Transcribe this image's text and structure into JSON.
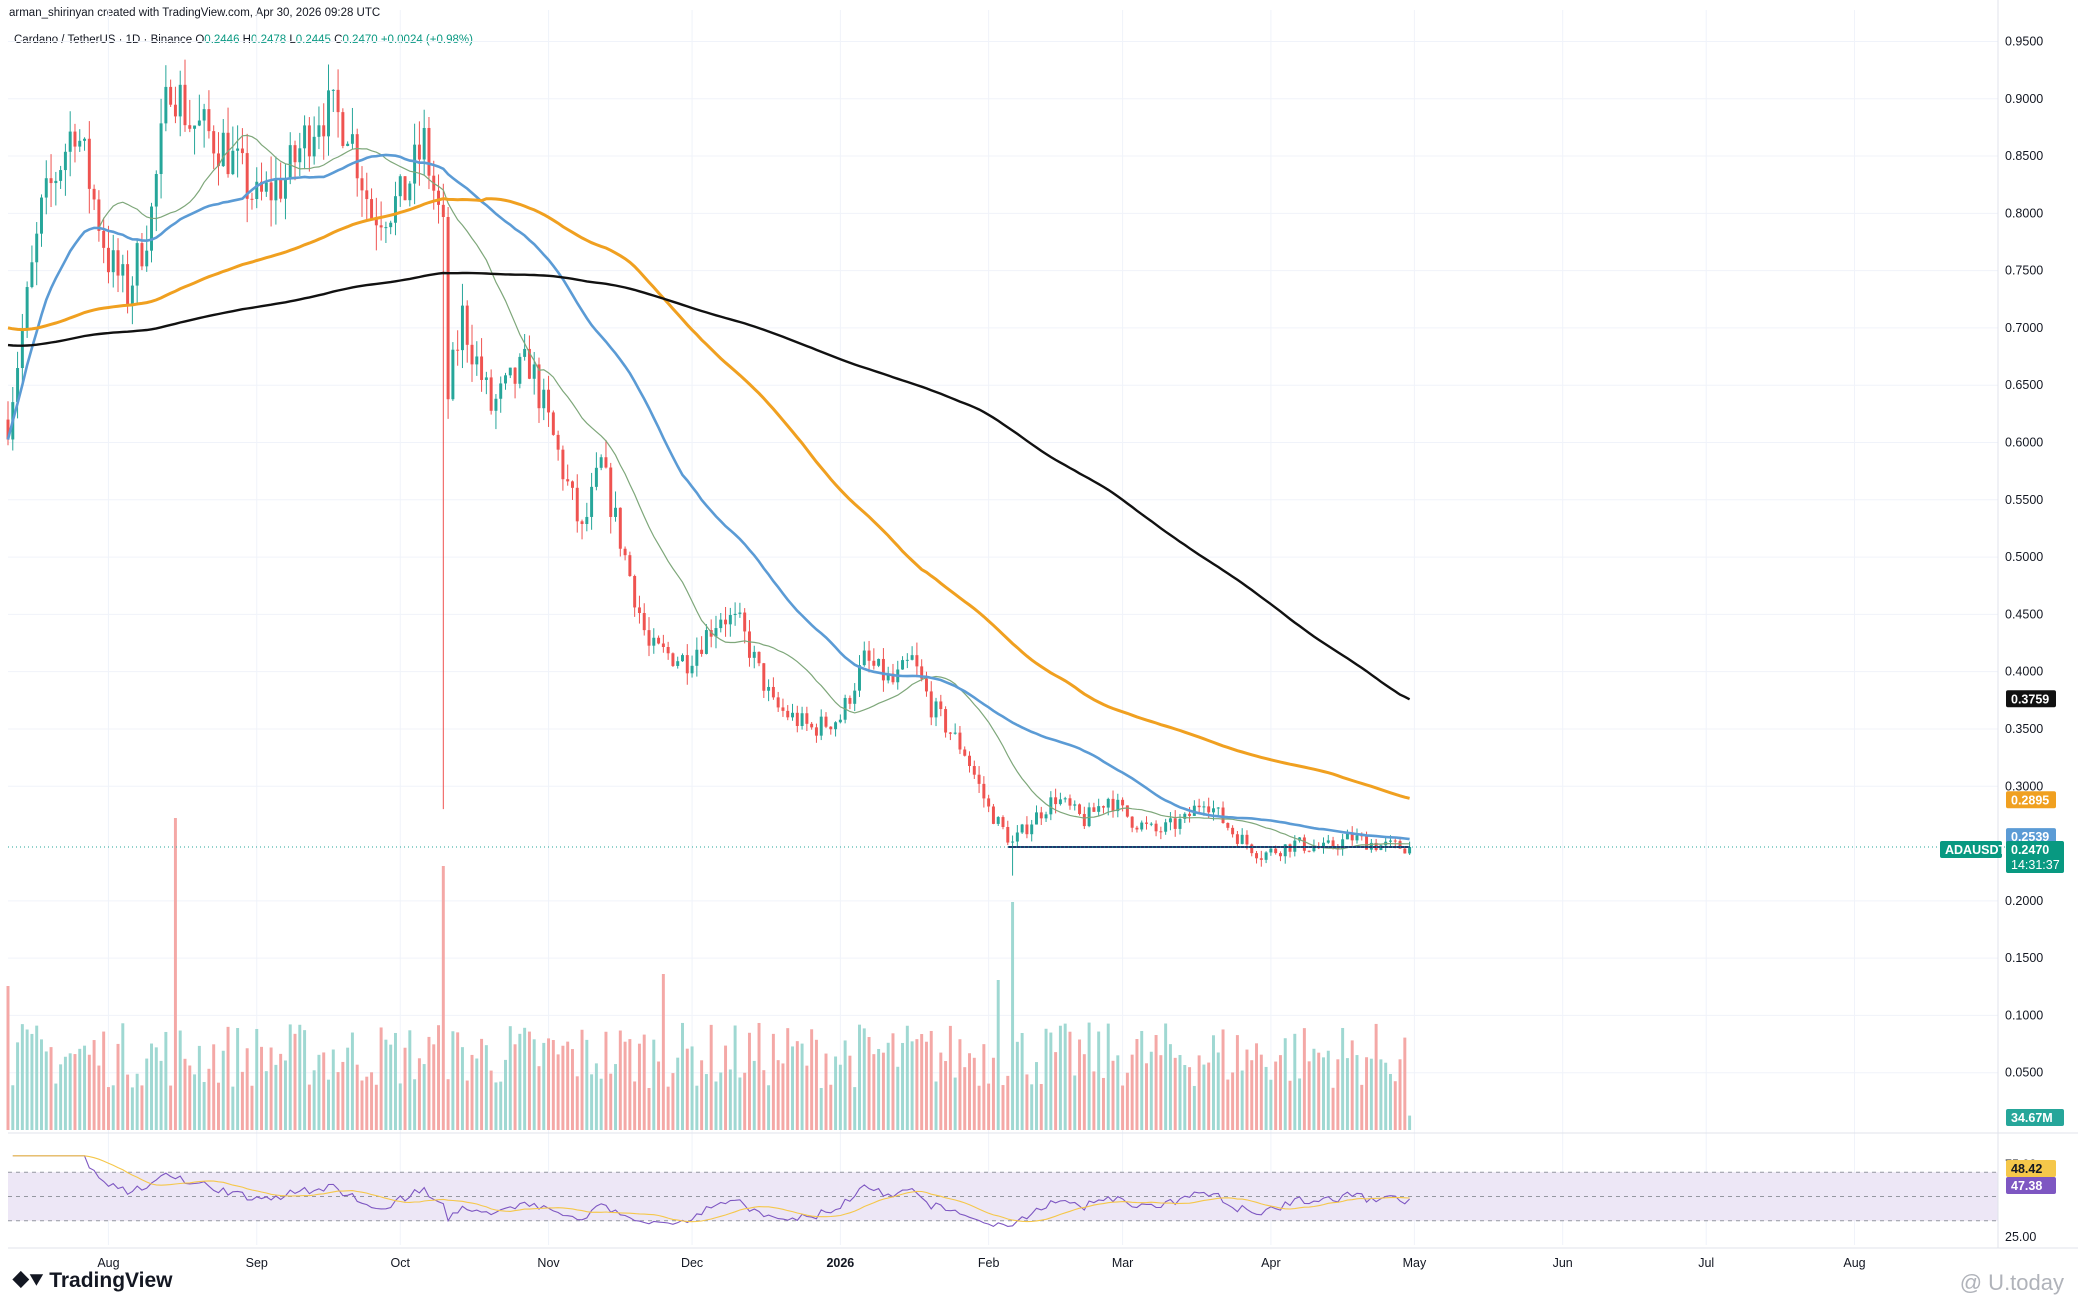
{
  "header": {
    "credit": "arman_shirinyan created with TradingView.com, Apr 30, 2026 09:28 UTC",
    "symbol": "Cardano / TetherUS · 1D · Binance",
    "ohlc": [
      {
        "label": "O",
        "value": "0.2446"
      },
      {
        "label": "H",
        "value": "0.2478"
      },
      {
        "label": "L",
        "value": "0.2445"
      },
      {
        "label": "C",
        "value": "0.2470"
      }
    ],
    "change": "+0.0024 (+0.98%)"
  },
  "colors": {
    "up": "#26a69a",
    "down": "#ef5350",
    "ma_fast": "#7ea77a",
    "ma_blue": "#5b9bd5",
    "ma_orange": "#f0a020",
    "ma_black": "#111111",
    "rsi_line": "#7e57c2",
    "rsi_ma": "#f5c74a",
    "rsi_band": "#ede7f6"
  },
  "price_axis": {
    "labels": [
      "0.9500",
      "0.9000",
      "0.8500",
      "0.8000",
      "0.7500",
      "0.7000",
      "0.6500",
      "0.6000",
      "0.5500",
      "0.5000",
      "0.4500",
      "0.4000",
      "0.3500",
      "0.3000",
      "0.2000",
      "0.1500",
      "0.1000",
      "0.0500"
    ]
  },
  "rsi_axis": {
    "labels": [
      "75.00",
      "25.00"
    ]
  },
  "time_axis": {
    "labels": [
      {
        "text": "Aug",
        "bold": false
      },
      {
        "text": "Sep",
        "bold": false
      },
      {
        "text": "Oct",
        "bold": false
      },
      {
        "text": "Nov",
        "bold": false
      },
      {
        "text": "Dec",
        "bold": false
      },
      {
        "text": "2026",
        "bold": true
      },
      {
        "text": "Feb",
        "bold": false
      },
      {
        "text": "Mar",
        "bold": false
      },
      {
        "text": "Apr",
        "bold": false
      },
      {
        "text": "May",
        "bold": false
      },
      {
        "text": "Jun",
        "bold": false
      },
      {
        "text": "Jul",
        "bold": false
      },
      {
        "text": "Aug",
        "bold": false
      }
    ]
  },
  "badges": {
    "ma200": "0.3759",
    "ma100": "0.2895",
    "ma50": "0.2539",
    "ma20": "0.2498",
    "ticker": "ADAUSDT",
    "last": "0.2470",
    "countdown": "14:31:37",
    "volume": "34.67M",
    "rsi_ma": "48.42",
    "rsi": "47.38"
  },
  "footer": {
    "brand": "TradingView",
    "watermark": "@ U.today"
  },
  "chart_data": {
    "type": "candlestick",
    "timeframe": "1D",
    "x_range": [
      "2025-07-11",
      "2026-08-31"
    ],
    "last_date": "2026-04-30",
    "y_range": [
      0.0,
      0.96
    ],
    "anchors": [
      [
        "2025-07-11",
        0.62
      ],
      [
        "2025-07-18",
        0.8
      ],
      [
        "2025-07-25",
        0.88
      ],
      [
        "2025-08-01",
        0.76
      ],
      [
        "2025-08-05",
        0.73
      ],
      [
        "2025-08-10",
        0.8
      ],
      [
        "2025-08-14",
        0.92
      ],
      [
        "2025-08-18",
        0.88
      ],
      [
        "2025-08-25",
        0.86
      ],
      [
        "2025-09-01",
        0.81
      ],
      [
        "2025-09-07",
        0.83
      ],
      [
        "2025-09-14",
        0.89
      ],
      [
        "2025-09-20",
        0.88
      ],
      [
        "2025-09-25",
        0.8
      ],
      [
        "2025-10-01",
        0.81
      ],
      [
        "2025-10-06",
        0.86
      ],
      [
        "2025-10-10",
        0.78
      ],
      [
        "2025-10-11",
        0.64
      ],
      [
        "2025-10-14",
        0.71
      ],
      [
        "2025-10-20",
        0.63
      ],
      [
        "2025-10-28",
        0.67
      ],
      [
        "2025-11-03",
        0.59
      ],
      [
        "2025-11-08",
        0.52
      ],
      [
        "2025-11-12",
        0.58
      ],
      [
        "2025-11-17",
        0.5
      ],
      [
        "2025-11-22",
        0.42
      ],
      [
        "2025-11-30",
        0.41
      ],
      [
        "2025-12-07",
        0.45
      ],
      [
        "2025-12-11",
        0.44
      ],
      [
        "2025-12-18",
        0.37
      ],
      [
        "2025-12-26",
        0.35
      ],
      [
        "2026-01-01",
        0.36
      ],
      [
        "2026-01-06",
        0.41
      ],
      [
        "2026-01-12",
        0.39
      ],
      [
        "2026-01-16",
        0.41
      ],
      [
        "2026-01-20",
        0.37
      ],
      [
        "2026-01-27",
        0.33
      ],
      [
        "2026-02-01",
        0.28
      ],
      [
        "2026-02-06",
        0.25
      ],
      [
        "2026-02-10",
        0.27
      ],
      [
        "2026-02-15",
        0.29
      ],
      [
        "2026-02-21",
        0.27
      ],
      [
        "2026-02-26",
        0.29
      ],
      [
        "2026-03-03",
        0.27
      ],
      [
        "2026-03-08",
        0.26
      ],
      [
        "2026-03-14",
        0.27
      ],
      [
        "2026-03-18",
        0.29
      ],
      [
        "2026-03-24",
        0.26
      ],
      [
        "2026-03-30",
        0.24
      ],
      [
        "2026-04-06",
        0.25
      ],
      [
        "2026-04-12",
        0.245
      ],
      [
        "2026-04-18",
        0.255
      ],
      [
        "2026-04-24",
        0.248
      ],
      [
        "2026-04-30",
        0.247
      ]
    ],
    "support_line": {
      "from": "2026-02-05",
      "to": "2026-04-30",
      "value": 0.247
    },
    "flash_crash": {
      "date": "2025-10-10",
      "low": 0.28
    },
    "moving_averages": [
      {
        "period": 20,
        "last": 0.2498
      },
      {
        "period": 50,
        "last": 0.2539
      },
      {
        "period": 100,
        "last": 0.2895
      },
      {
        "period": 200,
        "last": 0.3759
      }
    ],
    "volume_last": "34.67M",
    "volume_spikes": [
      [
        "2025-08-15",
        2.6
      ],
      [
        "2025-10-10",
        2.2
      ],
      [
        "2026-02-06",
        1.9
      ],
      [
        "2025-07-11",
        1.2
      ],
      [
        "2025-11-25",
        1.3
      ],
      [
        "2026-02-03",
        1.25
      ]
    ],
    "rsi": {
      "period": 14,
      "last": 47.38,
      "ma_last": 48.42,
      "upper": 75,
      "lower": 25
    }
  }
}
